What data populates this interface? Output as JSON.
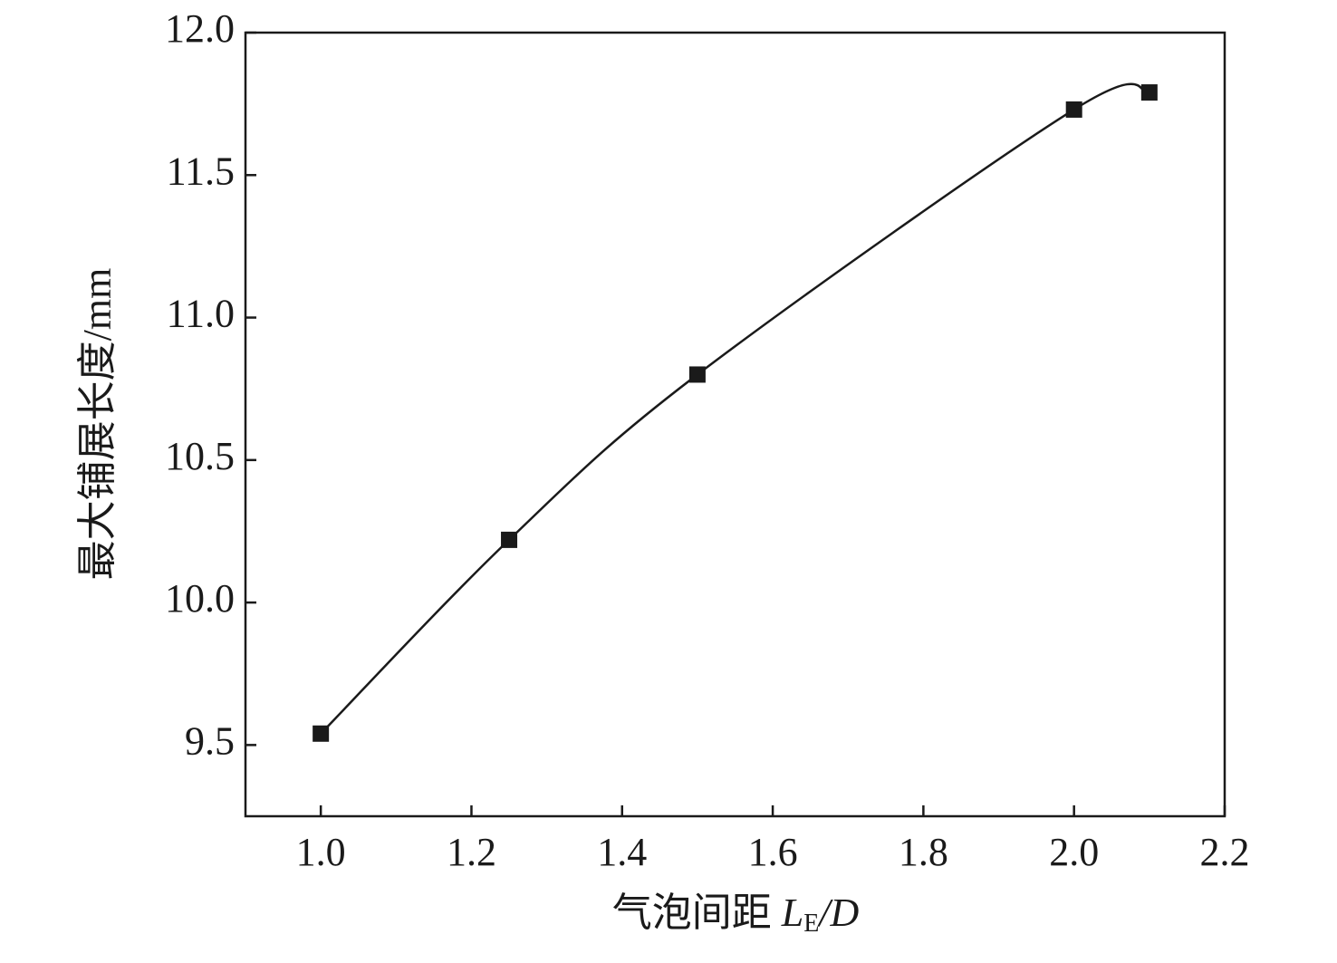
{
  "chart_data": {
    "type": "line",
    "y_label": "最大铺展长度/mm",
    "x_label_parts": [
      "气泡间距 ",
      "L",
      "E",
      "/D"
    ],
    "x": [
      1.0,
      1.25,
      1.5,
      2.0,
      2.1
    ],
    "series": [
      {
        "color": "#1a1a1a",
        "values": [
          9.54,
          10.22,
          10.8,
          11.73,
          11.79
        ]
      }
    ],
    "xlim": [
      0.9,
      2.2
    ],
    "xticks": [
      {
        "value": 1,
        "label": "1.0"
      },
      1.2,
      1.4,
      1.6,
      1.8,
      {
        "value": 2,
        "label": "2.0"
      },
      2.2
    ],
    "ylim": [
      9.25,
      12.0
    ],
    "yticks": [
      9.5,
      {
        "value": 10,
        "label": "10.0"
      },
      10.5,
      {
        "value": 11,
        "label": "11.0"
      },
      11.5,
      {
        "value": 12,
        "label": "12.0"
      }
    ],
    "grid": false,
    "smooth": true,
    "marker": "square"
  }
}
